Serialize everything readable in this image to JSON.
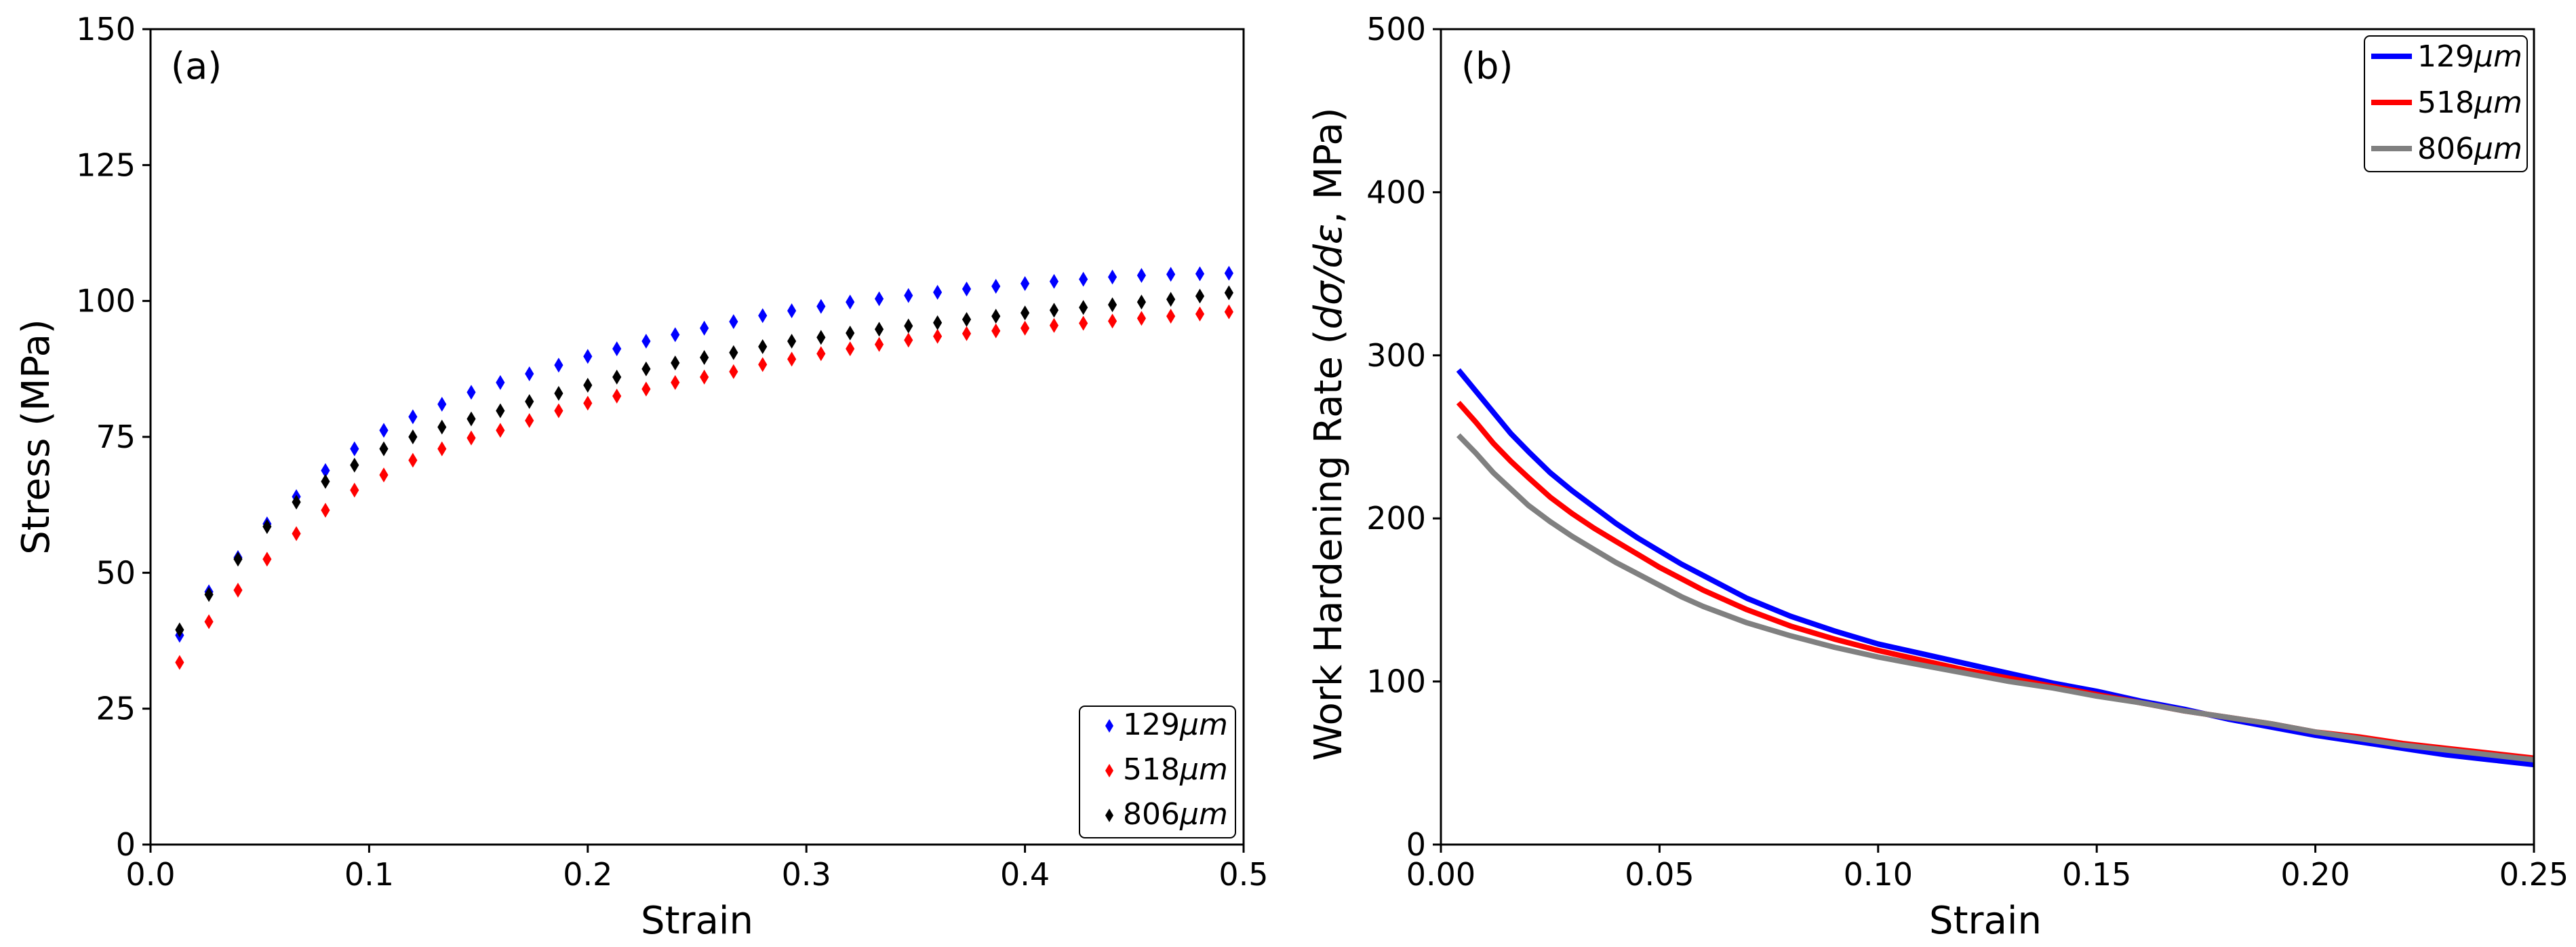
{
  "colors": {
    "s129": "#0000ff",
    "s518": "#ff0000",
    "s806": "#000000",
    "s806_line": "#808080"
  },
  "chart_data": [
    {
      "type": "scatter",
      "panel_label": "(a)",
      "xlabel": "Strain",
      "ylabel": "Stress (MPa)",
      "xlim": [
        0,
        0.5
      ],
      "ylim": [
        0,
        150
      ],
      "xticks": [
        0,
        0.1,
        0.2,
        0.3,
        0.4,
        0.5
      ],
      "xtick_labels": [
        "0.0",
        "0.1",
        "0.2",
        "0.3",
        "0.4",
        "0.5"
      ],
      "yticks": [
        0,
        25,
        50,
        75,
        100,
        125,
        150
      ],
      "ytick_labels": [
        "0",
        "25",
        "50",
        "75",
        "100",
        "125",
        "150"
      ],
      "legend_position": "lower-right",
      "marker": "diamond",
      "x": [
        0.0133,
        0.0267,
        0.04,
        0.0533,
        0.0667,
        0.08,
        0.0933,
        0.1067,
        0.12,
        0.1333,
        0.1467,
        0.16,
        0.1733,
        0.1867,
        0.2,
        0.2133,
        0.2267,
        0.24,
        0.2533,
        0.2667,
        0.28,
        0.2933,
        0.3067,
        0.32,
        0.3333,
        0.3467,
        0.36,
        0.3733,
        0.3867,
        0.4,
        0.4133,
        0.4267,
        0.44,
        0.4533,
        0.4667,
        0.48,
        0.4933
      ],
      "series": [
        {
          "name": "129",
          "unit": "μm",
          "color_key": "s129",
          "values": [
            38.5,
            46.5,
            52.8,
            59.0,
            64.0,
            68.8,
            72.8,
            76.2,
            78.7,
            81.0,
            83.2,
            85.0,
            86.6,
            88.2,
            89.8,
            91.2,
            92.6,
            93.8,
            95.0,
            96.2,
            97.3,
            98.2,
            99.0,
            99.8,
            100.4,
            101.0,
            101.6,
            102.2,
            102.7,
            103.2,
            103.6,
            104.0,
            104.4,
            104.7,
            104.9,
            105.0,
            105.1
          ]
        },
        {
          "name": "518",
          "unit": "μm",
          "color_key": "s518",
          "values": [
            33.5,
            41.0,
            46.8,
            52.5,
            57.2,
            61.5,
            65.2,
            68.0,
            70.7,
            72.8,
            74.8,
            76.2,
            78.0,
            79.8,
            81.2,
            82.5,
            83.8,
            85.0,
            86.0,
            87.0,
            88.3,
            89.3,
            90.3,
            91.2,
            92.0,
            92.8,
            93.5,
            94.0,
            94.5,
            95.0,
            95.5,
            95.9,
            96.3,
            96.8,
            97.2,
            97.6,
            98.0
          ]
        },
        {
          "name": "806",
          "unit": "μm",
          "color_key": "s806",
          "values": [
            39.5,
            46.0,
            52.5,
            58.5,
            63.0,
            66.8,
            69.8,
            72.8,
            75.0,
            76.8,
            78.3,
            79.8,
            81.5,
            83.0,
            84.5,
            86.0,
            87.5,
            88.6,
            89.6,
            90.5,
            91.6,
            92.6,
            93.3,
            94.1,
            94.8,
            95.4,
            96.0,
            96.6,
            97.2,
            97.8,
            98.3,
            98.8,
            99.3,
            99.8,
            100.3,
            100.9,
            101.5
          ]
        }
      ]
    },
    {
      "type": "line",
      "panel_label": "(b)",
      "xlabel": "Strain",
      "ylabel_prefix": "Work Hardening Rate (",
      "ylabel_math": "dσ/dε",
      "ylabel_suffix": ", MPa)",
      "xlim": [
        0,
        0.25
      ],
      "ylim": [
        0,
        500
      ],
      "xticks": [
        0,
        0.05,
        0.1,
        0.15,
        0.2,
        0.25
      ],
      "xtick_labels": [
        "0.00",
        "0.05",
        "0.10",
        "0.15",
        "0.20",
        "0.25"
      ],
      "yticks": [
        0,
        100,
        200,
        300,
        400,
        500
      ],
      "ytick_labels": [
        "0",
        "100",
        "200",
        "300",
        "400",
        "500"
      ],
      "legend_position": "top-right",
      "x": [
        0.004,
        0.008,
        0.012,
        0.016,
        0.02,
        0.025,
        0.03,
        0.035,
        0.04,
        0.045,
        0.05,
        0.055,
        0.06,
        0.07,
        0.08,
        0.09,
        0.1,
        0.11,
        0.12,
        0.13,
        0.14,
        0.15,
        0.16,
        0.17,
        0.18,
        0.19,
        0.2,
        0.21,
        0.22,
        0.23,
        0.24,
        0.25
      ],
      "series": [
        {
          "name": "129",
          "unit": "μm",
          "color_key": "s129",
          "values": [
            291,
            278,
            265,
            252,
            241,
            228,
            217,
            207,
            197,
            188,
            180,
            172,
            165,
            151,
            140,
            131,
            123,
            117,
            111,
            105,
            99,
            94,
            88,
            83,
            77,
            72,
            67,
            63,
            59,
            55,
            52,
            49
          ]
        },
        {
          "name": "518",
          "unit": "μm",
          "color_key": "s518",
          "values": [
            271,
            259,
            246,
            235,
            225,
            213,
            203,
            194,
            186,
            178,
            170,
            163,
            156,
            144,
            134,
            126,
            119,
            113,
            107,
            102,
            97,
            92,
            87,
            82,
            78,
            74,
            69,
            66,
            62,
            59,
            56,
            53
          ]
        },
        {
          "name": "806",
          "unit": "μm",
          "color_key": "s806_line",
          "values": [
            251,
            240,
            228,
            218,
            208,
            198,
            189,
            181,
            173,
            166,
            159,
            152,
            146,
            136,
            128,
            121,
            115,
            110,
            105,
            100,
            96,
            91,
            87,
            82,
            78,
            74,
            69,
            65,
            61,
            58,
            55,
            52
          ]
        }
      ]
    }
  ]
}
